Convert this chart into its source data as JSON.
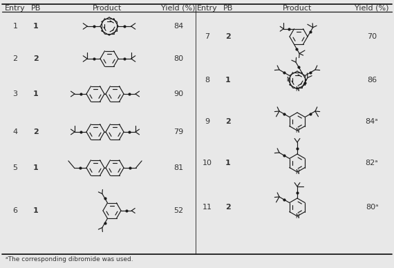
{
  "bg_color": "#e8e8e8",
  "text_color": "#333333",
  "entries_left": [
    {
      "entry": "1",
      "pb": "1",
      "yield": "84"
    },
    {
      "entry": "2",
      "pb": "2",
      "yield": "80"
    },
    {
      "entry": "3",
      "pb": "1",
      "yield": "90"
    },
    {
      "entry": "4",
      "pb": "2",
      "yield": "79"
    },
    {
      "entry": "5",
      "pb": "1",
      "yield": "81"
    },
    {
      "entry": "6",
      "pb": "1",
      "yield": "52"
    }
  ],
  "entries_right": [
    {
      "entry": "7",
      "pb": "2",
      "yield": "70"
    },
    {
      "entry": "8",
      "pb": "1",
      "yield": "86"
    },
    {
      "entry": "9",
      "pb": "2",
      "yield": "84ᵃ"
    },
    {
      "entry": "10",
      "pb": "1",
      "yield": "82ᵃ"
    },
    {
      "entry": "11",
      "pb": "2",
      "yield": "80ᵃ"
    }
  ],
  "footnote": "ᵃThe corresponding dibromide was used.",
  "font_size": 8
}
